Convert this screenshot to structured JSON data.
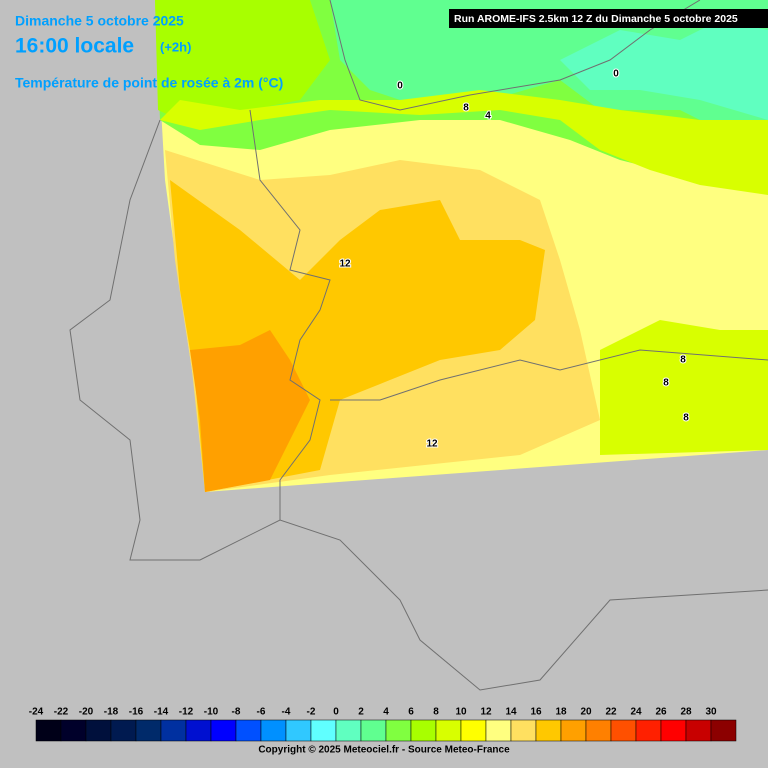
{
  "header": {
    "title": "Dimanche 5 octobre 2025",
    "time": "16:00 locale",
    "offset": "(+2h)",
    "subtitle": "Température de point de rosée à 2m (°C)",
    "run": "Run AROME-IFS 2.5km 12 Z du Dimanche 5 octobre 2025"
  },
  "contour_labels": [
    "0",
    "8",
    "4",
    "0",
    "12",
    "8",
    "8",
    "8",
    "12"
  ],
  "legend": {
    "ticks": [
      -24,
      -22,
      -20,
      -18,
      -16,
      -14,
      -12,
      -10,
      -8,
      -6,
      -4,
      -2,
      0,
      2,
      4,
      6,
      8,
      10,
      12,
      14,
      16,
      18,
      20,
      22,
      24,
      26,
      28,
      30
    ],
    "colors": [
      "#000018",
      "#00002a",
      "#00103c",
      "#001a50",
      "#002a6a",
      "#0030a0",
      "#0010d0",
      "#0000ff",
      "#0050ff",
      "#0090ff",
      "#30c8ff",
      "#60ffff",
      "#60ffc0",
      "#60ff90",
      "#80ff40",
      "#a8ff00",
      "#d8ff00",
      "#ffff00",
      "#ffff80",
      "#ffe060",
      "#ffc800",
      "#ffa000",
      "#ff8000",
      "#ff5000",
      "#ff2000",
      "#ff0000",
      "#c80000",
      "#8c0000"
    ]
  },
  "footer": {
    "copyright": "Copyright © 2025 Meteociel.fr - Source Meteo-France"
  }
}
